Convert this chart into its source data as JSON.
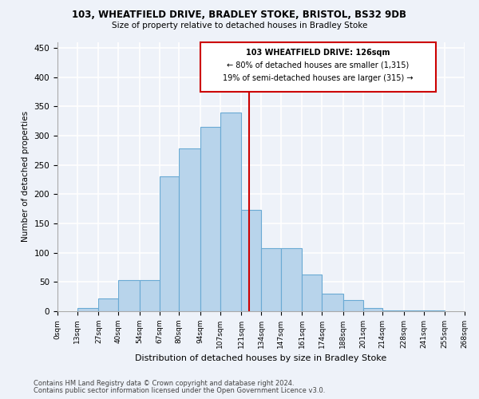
{
  "title1": "103, WHEATFIELD DRIVE, BRADLEY STOKE, BRISTOL, BS32 9DB",
  "title2": "Size of property relative to detached houses in Bradley Stoke",
  "xlabel": "Distribution of detached houses by size in Bradley Stoke",
  "ylabel": "Number of detached properties",
  "footer1": "Contains HM Land Registry data © Crown copyright and database right 2024.",
  "footer2": "Contains public sector information licensed under the Open Government Licence v3.0.",
  "annotation_line1": "103 WHEATFIELD DRIVE: 126sqm",
  "annotation_line2": "← 80% of detached houses are smaller (1,315)",
  "annotation_line3": "19% of semi-detached houses are larger (315) →",
  "property_size": 126,
  "bin_edges": [
    0,
    13,
    27,
    40,
    54,
    67,
    80,
    94,
    107,
    121,
    134,
    147,
    161,
    174,
    188,
    201,
    214,
    228,
    241,
    255,
    268
  ],
  "bar_heights": [
    0,
    5,
    22,
    53,
    53,
    230,
    278,
    315,
    340,
    173,
    108,
    108,
    63,
    30,
    19,
    6,
    2,
    1,
    1,
    0
  ],
  "bar_color": "#b8d4eb",
  "bar_edge_color": "#6aaad4",
  "vline_color": "#cc0000",
  "background_color": "#eef2f9",
  "grid_color": "#ffffff",
  "annotation_box_color": "#cc0000",
  "ylim": [
    0,
    460
  ],
  "yticks": [
    0,
    50,
    100,
    150,
    200,
    250,
    300,
    350,
    400,
    450
  ]
}
